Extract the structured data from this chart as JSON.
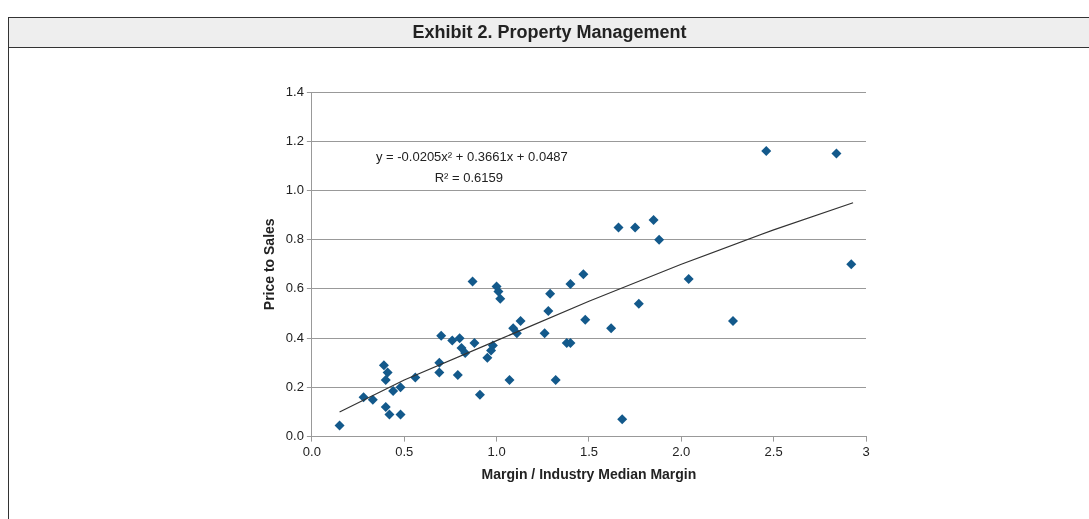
{
  "chart_data": {
    "type": "scatter",
    "title": "Exhibit 2. Property Management",
    "xlabel": "Margin / Industry Median Margin",
    "ylabel": "Price to Sales",
    "annotations": [
      "y = -0.0205x² + 0.3661x + 0.0487",
      "R² = 0.6159"
    ],
    "xlim": [
      0,
      3
    ],
    "xticks": [
      {
        "value": 0,
        "label": "0.0"
      },
      0.5,
      {
        "value": 1,
        "label": "1.0"
      },
      1.5,
      {
        "value": 2,
        "label": "2.0"
      },
      2.5,
      3
    ],
    "ylim": [
      0,
      1.4
    ],
    "yticks": [
      {
        "value": 0,
        "label": "0.0"
      },
      0.2,
      0.4,
      0.6,
      0.8,
      {
        "value": 1,
        "label": "1.0"
      },
      1.2,
      1.4
    ],
    "grid": "y",
    "legend": false,
    "series": [
      {
        "color": "#13598b",
        "marker": "diamond",
        "x": [
          0.15,
          0.28,
          0.33,
          0.39,
          0.41,
          0.4,
          0.4,
          0.42,
          0.44,
          0.48,
          0.48,
          0.56,
          0.69,
          0.7,
          0.69,
          0.76,
          0.79,
          0.8,
          0.81,
          0.83,
          0.87,
          0.88,
          0.91,
          0.95,
          0.97,
          0.98,
          1.0,
          1.01,
          1.02,
          1.07,
          1.09,
          1.11,
          1.13,
          1.26,
          1.28,
          1.29,
          1.32,
          1.38,
          1.4,
          1.4,
          1.47,
          1.48,
          1.62,
          1.66,
          1.68,
          1.75,
          1.77,
          1.85,
          1.88,
          2.04,
          2.28,
          2.46,
          2.84,
          2.92
        ],
        "values": [
          0.045,
          0.16,
          0.15,
          0.29,
          0.26,
          0.23,
          0.12,
          0.09,
          0.185,
          0.2,
          0.09,
          0.24,
          0.3,
          0.41,
          0.26,
          0.39,
          0.25,
          0.4,
          0.36,
          0.34,
          0.63,
          0.38,
          0.17,
          0.32,
          0.35,
          0.37,
          0.61,
          0.59,
          0.56,
          0.23,
          0.44,
          0.42,
          0.47,
          0.42,
          0.51,
          0.58,
          0.23,
          0.38,
          0.38,
          0.62,
          0.66,
          0.475,
          0.44,
          0.85,
          0.07,
          0.85,
          0.54,
          0.88,
          0.8,
          0.64,
          0.47,
          1.16,
          1.15,
          0.7
        ]
      },
      {
        "type": "line",
        "color": "#333333",
        "marker": "none",
        "line_style": "solid",
        "x": [
          0.15,
          0.5,
          1,
          1.5,
          2,
          2.5,
          2.93
        ],
        "values": [
          0.1,
          0.23,
          0.39,
          0.55,
          0.7,
          0.84,
          0.95
        ]
      }
    ]
  }
}
